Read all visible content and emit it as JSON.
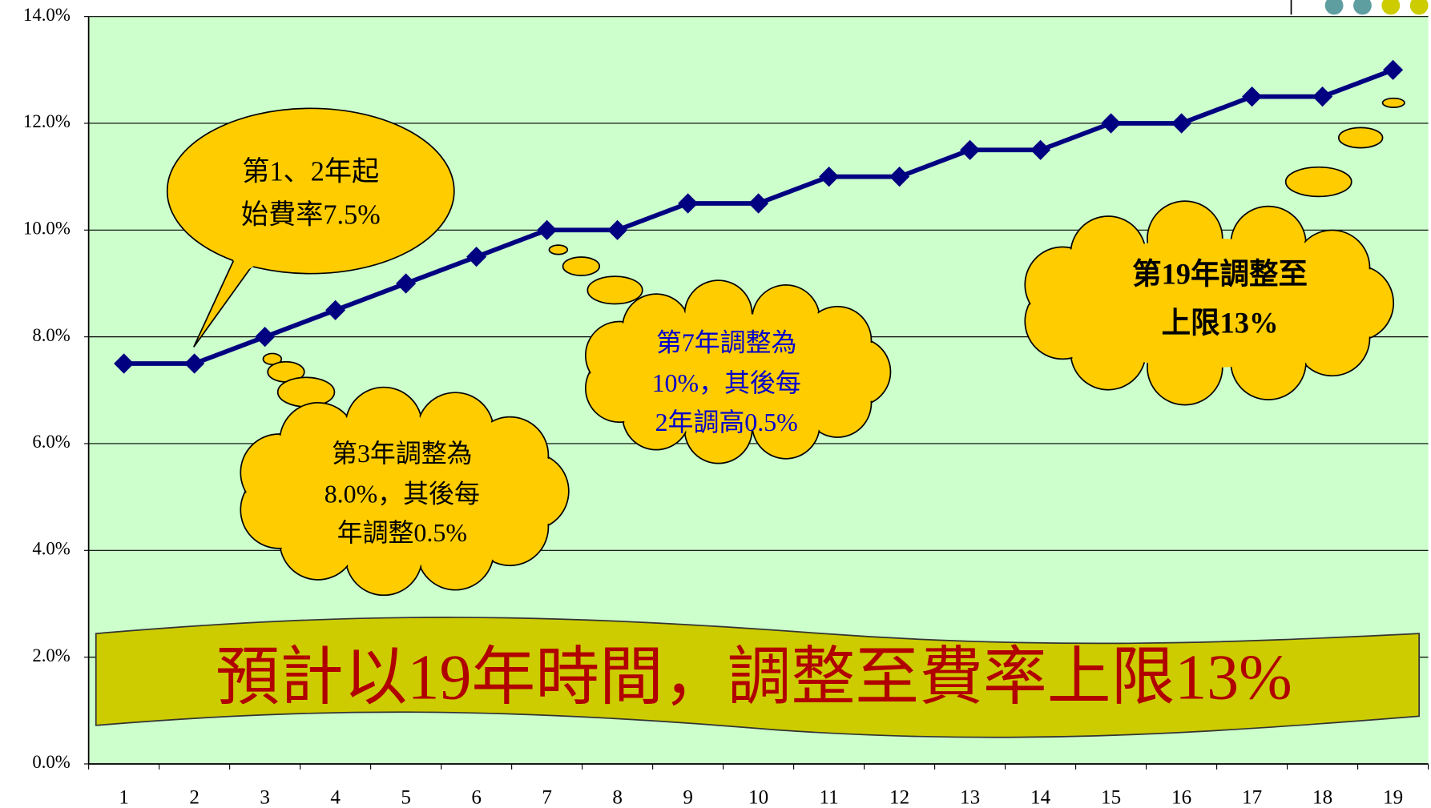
{
  "chart_data": {
    "type": "line",
    "categories": [
      "1",
      "2",
      "3",
      "4",
      "5",
      "6",
      "7",
      "8",
      "9",
      "10",
      "11",
      "12",
      "13",
      "14",
      "15",
      "16",
      "17",
      "18",
      "19"
    ],
    "series": [
      {
        "color": "#000080",
        "values": [
          7.5,
          7.5,
          8,
          8.5,
          9,
          9.5,
          10,
          10,
          10.5,
          10.5,
          11,
          11,
          11.5,
          11.5,
          12,
          12,
          12.5,
          12.5,
          13
        ]
      }
    ],
    "ylim": [
      0,
      14
    ],
    "yticks": [
      {
        "value": 0,
        "label": "0.0%"
      },
      {
        "value": 2,
        "label": "2.0%"
      },
      {
        "value": 4,
        "label": "4.0%"
      },
      {
        "value": 6,
        "label": "6.0%"
      },
      {
        "value": 8,
        "label": "8.0%"
      },
      {
        "value": 10,
        "label": "10.0%"
      },
      {
        "value": 12,
        "label": "12.0%"
      },
      {
        "value": 14,
        "label": "14.0%"
      }
    ],
    "grid": true,
    "annotations": [
      {
        "lines": [
          "第1、2年起",
          "始費率7.5%"
        ]
      },
      {
        "lines": [
          "第3年調整為",
          "8.0%，其後每",
          "年調整0.5%"
        ]
      },
      {
        "lines": [
          "第7年調整為",
          "10%，其後每",
          "2年調高0.5%"
        ]
      },
      {
        "lines": [
          "第19年調整至",
          "上限13%"
        ]
      }
    ],
    "banner": "預計以19年時間，調整至費率上限13%"
  }
}
